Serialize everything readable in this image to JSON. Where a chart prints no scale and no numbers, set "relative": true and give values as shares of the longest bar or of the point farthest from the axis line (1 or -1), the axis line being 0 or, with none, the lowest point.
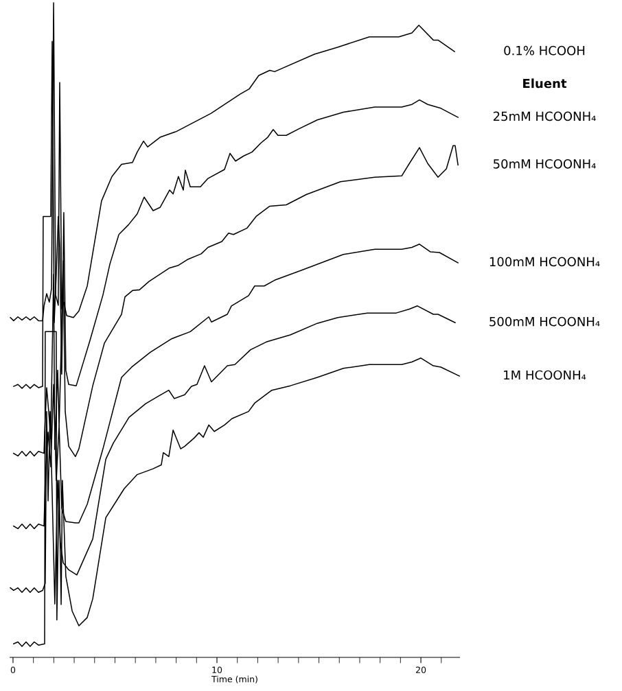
{
  "chart_data": {
    "type": "line",
    "relative": true,
    "xlabel": "Time (min)",
    "legend_title": "Eluent",
    "marker": "none",
    "line_style": "solid",
    "xlim": [
      -0.15,
      21.9
    ],
    "xticks": [
      0,
      10,
      20
    ],
    "series": [
      {
        "name": "0.1% HCOOH",
        "color": "#000000",
        "x": [
          -0.13,
          0.03,
          0.24,
          0.44,
          0.64,
          0.84,
          1.04,
          1.25,
          1.45,
          1.52,
          1.65,
          1.78,
          1.89,
          1.99,
          2.09,
          2.22,
          2.29,
          2.39,
          2.49,
          2.63,
          2.96,
          3.23,
          3.64,
          4.34,
          4.85,
          5.32,
          5.86,
          6.09,
          6.4,
          6.6,
          7.21,
          8.01,
          9.7,
          11.14,
          11.58,
          12.05,
          12.59,
          12.83,
          14.78,
          15.93,
          17.47,
          18.92,
          19.56,
          19.9,
          20.61,
          20.84,
          21.65
        ],
        "values": [
          0.511,
          0.506,
          0.512,
          0.507,
          0.512,
          0.507,
          0.512,
          0.506,
          0.506,
          0.529,
          0.548,
          0.535,
          0.556,
          1.0,
          0.546,
          0.53,
          0.876,
          0.524,
          0.535,
          0.514,
          0.511,
          0.521,
          0.56,
          0.692,
          0.73,
          0.749,
          0.752,
          0.768,
          0.785,
          0.776,
          0.791,
          0.8,
          0.828,
          0.858,
          0.866,
          0.887,
          0.895,
          0.893,
          0.92,
          0.931,
          0.947,
          0.947,
          0.953,
          0.965,
          0.942,
          0.942,
          0.924
        ]
      },
      {
        "name": "25mM HCOONH₄",
        "color": "#000000",
        "x": [
          0.03,
          0.24,
          0.44,
          0.64,
          0.84,
          1.04,
          1.25,
          1.45,
          1.48,
          1.85,
          1.92,
          2.02,
          2.12,
          2.22,
          2.29,
          2.39,
          2.49,
          2.59,
          2.73,
          3.1,
          3.77,
          4.41,
          4.75,
          5.19,
          5.66,
          6.09,
          6.43,
          6.87,
          7.21,
          7.68,
          7.85,
          8.11,
          8.35,
          8.45,
          8.69,
          9.19,
          9.56,
          10.37,
          10.64,
          10.91,
          11.31,
          11.72,
          12.15,
          12.49,
          12.76,
          12.99,
          13.4,
          14.01,
          14.92,
          16.2,
          17.74,
          19.06,
          19.56,
          19.93,
          20.34,
          20.98,
          21.82
        ],
        "values": [
          0.404,
          0.407,
          0.401,
          0.407,
          0.401,
          0.407,
          0.402,
          0.404,
          0.668,
          0.668,
          0.94,
          0.503,
          0.578,
          0.668,
          0.62,
          0.423,
          0.674,
          0.429,
          0.407,
          0.405,
          0.475,
          0.546,
          0.594,
          0.64,
          0.655,
          0.672,
          0.698,
          0.677,
          0.682,
          0.709,
          0.703,
          0.73,
          0.709,
          0.74,
          0.714,
          0.714,
          0.727,
          0.741,
          0.766,
          0.754,
          0.762,
          0.768,
          0.782,
          0.791,
          0.803,
          0.794,
          0.794,
          0.804,
          0.818,
          0.83,
          0.838,
          0.838,
          0.842,
          0.849,
          0.842,
          0.836,
          0.822
        ]
      },
      {
        "name": "50mM HCOONH₄",
        "color": "#000000",
        "x": [
          0.03,
          0.24,
          0.44,
          0.64,
          0.84,
          1.04,
          1.25,
          1.52,
          1.55,
          1.65,
          1.75,
          1.85,
          1.99,
          2.05,
          2.19,
          2.26,
          2.32,
          2.46,
          2.56,
          2.73,
          3.06,
          3.23,
          3.91,
          4.48,
          5.32,
          5.49,
          5.86,
          6.2,
          6.67,
          7.68,
          8.11,
          8.55,
          9.23,
          9.56,
          10.24,
          10.57,
          10.81,
          11.48,
          11.92,
          12.59,
          13.4,
          14.38,
          16.06,
          17.74,
          19.06,
          19.43,
          19.93,
          20.34,
          20.84,
          21.25,
          21.58,
          21.68,
          21.82
        ],
        "values": [
          0.3,
          0.296,
          0.303,
          0.296,
          0.303,
          0.296,
          0.303,
          0.3,
          0.333,
          0.402,
          0.365,
          0.322,
          0.578,
          0.306,
          0.429,
          0.343,
          0.413,
          0.599,
          0.365,
          0.311,
          0.295,
          0.307,
          0.405,
          0.471,
          0.516,
          0.543,
          0.553,
          0.554,
          0.567,
          0.588,
          0.592,
          0.601,
          0.61,
          0.62,
          0.629,
          0.642,
          0.64,
          0.65,
          0.668,
          0.684,
          0.686,
          0.702,
          0.722,
          0.729,
          0.731,
          0.75,
          0.775,
          0.75,
          0.729,
          0.742,
          0.778,
          0.778,
          0.748
        ]
      },
      {
        "name": "100mM HCOONH₄",
        "color": "#000000",
        "x": [
          0.03,
          0.24,
          0.44,
          0.64,
          0.84,
          1.04,
          1.25,
          1.52,
          1.58,
          1.72,
          1.85,
          1.99,
          2.12,
          2.26,
          2.39,
          2.59,
          3.06,
          3.23,
          3.64,
          4.41,
          5.32,
          5.82,
          6.73,
          7.78,
          8.69,
          9.6,
          9.73,
          10.51,
          10.71,
          11.55,
          11.85,
          12.32,
          12.83,
          14.11,
          16.2,
          17.74,
          19.06,
          19.56,
          19.93,
          20.47,
          20.91,
          21.82
        ],
        "values": [
          0.187,
          0.183,
          0.19,
          0.183,
          0.19,
          0.183,
          0.19,
          0.187,
          0.258,
          0.333,
          0.279,
          0.407,
          0.258,
          0.343,
          0.215,
          0.194,
          0.192,
          0.192,
          0.221,
          0.307,
          0.418,
          0.434,
          0.457,
          0.478,
          0.489,
          0.512,
          0.504,
          0.516,
          0.529,
          0.545,
          0.56,
          0.56,
          0.569,
          0.584,
          0.609,
          0.617,
          0.617,
          0.62,
          0.625,
          0.613,
          0.612,
          0.596
        ]
      },
      {
        "name": "500mM HCOONH₄",
        "color": "#000000",
        "x": [
          -0.13,
          0.03,
          0.24,
          0.44,
          0.64,
          0.84,
          1.04,
          1.25,
          1.45,
          1.58,
          1.65,
          1.72,
          1.82,
          1.92,
          2.05,
          2.19,
          2.32,
          2.46,
          2.73,
          3.13,
          3.91,
          4.55,
          4.92,
          5.69,
          6.5,
          7.14,
          7.64,
          7.91,
          8.42,
          8.75,
          9.02,
          9.39,
          9.73,
          10.51,
          10.88,
          11.65,
          12.42,
          13.6,
          14.92,
          15.93,
          17.37,
          18.79,
          19.43,
          19.83,
          20.61,
          20.84,
          21.68
        ],
        "values": [
          0.091,
          0.087,
          0.091,
          0.084,
          0.091,
          0.084,
          0.091,
          0.084,
          0.087,
          0.098,
          0.365,
          0.226,
          0.365,
          0.237,
          0.066,
          0.258,
          0.162,
          0.13,
          0.119,
          0.111,
          0.167,
          0.291,
          0.316,
          0.356,
          0.377,
          0.389,
          0.398,
          0.385,
          0.391,
          0.404,
          0.407,
          0.436,
          0.411,
          0.436,
          0.438,
          0.461,
          0.473,
          0.484,
          0.502,
          0.511,
          0.518,
          0.518,
          0.524,
          0.529,
          0.516,
          0.516,
          0.503
        ]
      },
      {
        "name": "1M HCOONH₄",
        "color": "#000000",
        "x": [
          0.03,
          0.24,
          0.44,
          0.64,
          0.84,
          1.04,
          1.25,
          1.55,
          1.58,
          2.12,
          2.15,
          2.26,
          2.36,
          2.42,
          2.59,
          2.9,
          3.23,
          3.64,
          3.91,
          4.55,
          5.05,
          5.45,
          6.09,
          6.87,
          7.27,
          7.37,
          7.64,
          7.85,
          8.22,
          8.42,
          8.89,
          9.12,
          9.33,
          9.6,
          9.87,
          10.37,
          10.74,
          11.55,
          11.85,
          12.69,
          13.6,
          14.92,
          16.2,
          17.47,
          19.06,
          19.56,
          20.0,
          20.61,
          20.98,
          21.89
        ],
        "values": [
          0.004,
          0.007,
          0.0,
          0.007,
          0.0,
          0.007,
          0.002,
          0.004,
          0.489,
          0.489,
          0.041,
          0.258,
          0.065,
          0.258,
          0.109,
          0.055,
          0.032,
          0.045,
          0.074,
          0.2,
          0.225,
          0.245,
          0.267,
          0.276,
          0.282,
          0.301,
          0.295,
          0.336,
          0.307,
          0.311,
          0.324,
          0.332,
          0.325,
          0.344,
          0.334,
          0.344,
          0.354,
          0.365,
          0.378,
          0.398,
          0.405,
          0.418,
          0.432,
          0.438,
          0.438,
          0.442,
          0.448,
          0.436,
          0.434,
          0.42
        ]
      }
    ]
  }
}
